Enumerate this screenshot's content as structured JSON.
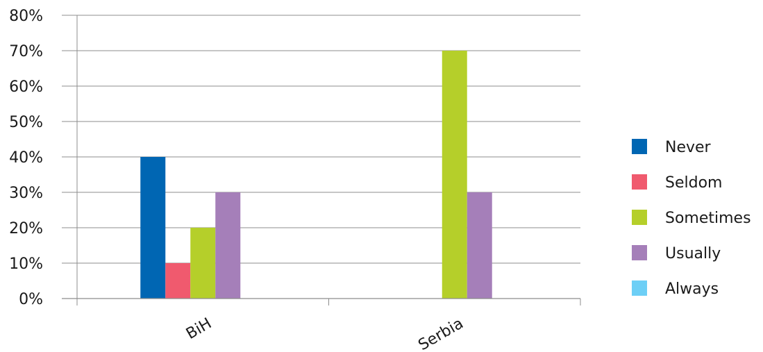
{
  "chart_data": {
    "type": "bar",
    "categories": [
      "BiH",
      "Serbia"
    ],
    "series": [
      {
        "name": "Never",
        "color": "#0066b3",
        "values": [
          40,
          0
        ]
      },
      {
        "name": "Seldom",
        "color": "#f05a6e",
        "values": [
          10,
          0
        ]
      },
      {
        "name": "Sometimes",
        "color": "#b5cf2a",
        "values": [
          20,
          70
        ]
      },
      {
        "name": "Usually",
        "color": "#a57fb9",
        "values": [
          30,
          30
        ]
      },
      {
        "name": "Always",
        "color": "#6dcff6",
        "values": [
          0,
          0
        ]
      }
    ],
    "y_ticks": [
      "0%",
      "10%",
      "20%",
      "30%",
      "40%",
      "50%",
      "60%",
      "70%",
      "80%"
    ],
    "ylim": [
      0,
      80
    ],
    "y_unit": "%",
    "grid": true,
    "legend_position": "right",
    "title": "",
    "xlabel": "",
    "ylabel": ""
  }
}
